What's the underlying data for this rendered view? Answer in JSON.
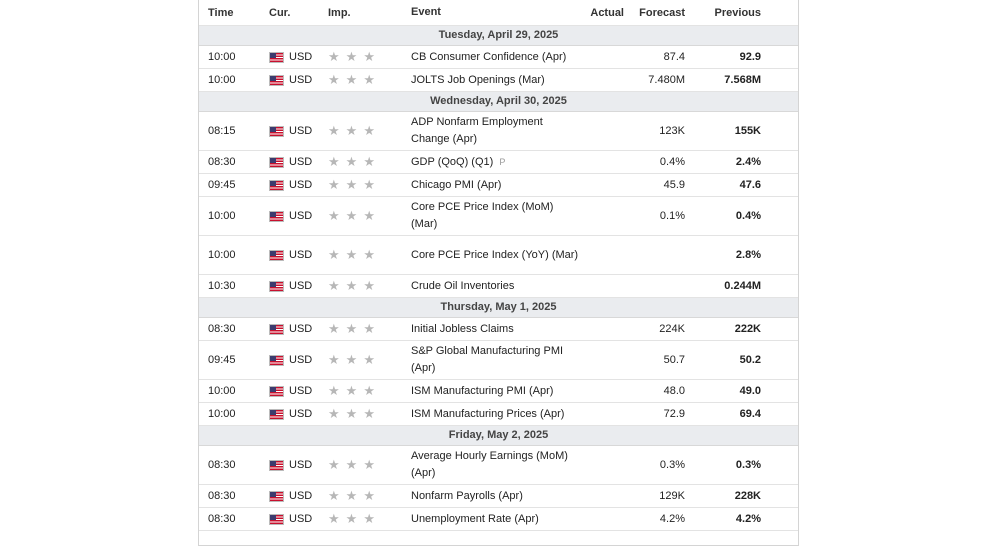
{
  "headers": {
    "time": "Time",
    "cur": "Cur.",
    "imp": "Imp.",
    "event": "Event",
    "actual": "Actual",
    "forecast": "Forecast",
    "previous": "Previous"
  },
  "sections": [
    {
      "date": "Tuesday, April 29, 2025",
      "rows": [
        {
          "time": "10:00",
          "cur": "USD",
          "event": "CB Consumer Confidence (Apr)",
          "actual": "",
          "forecast": "87.4",
          "previous": "92.9"
        },
        {
          "time": "10:00",
          "cur": "USD",
          "event": "JOLTS Job Openings (Mar)",
          "actual": "",
          "forecast": "7.480M",
          "previous": "7.568M"
        }
      ]
    },
    {
      "date": "Wednesday, April 30, 2025",
      "rows": [
        {
          "time": "08:15",
          "cur": "USD",
          "event": "ADP Nonfarm Employment Change (Apr)",
          "actual": "",
          "forecast": "123K",
          "previous": "155K"
        },
        {
          "time": "08:30",
          "cur": "USD",
          "event": "GDP (QoQ) (Q1)",
          "badge": "P",
          "actual": "",
          "forecast": "0.4%",
          "previous": "2.4%"
        },
        {
          "time": "09:45",
          "cur": "USD",
          "event": "Chicago PMI (Apr)",
          "actual": "",
          "forecast": "45.9",
          "previous": "47.6"
        },
        {
          "time": "10:00",
          "cur": "USD",
          "event": "Core PCE Price Index (MoM) (Mar)",
          "actual": "",
          "forecast": "0.1%",
          "previous": "0.4%"
        },
        {
          "time": "10:00",
          "cur": "USD",
          "event": "Core PCE Price Index (YoY) (Mar)",
          "actual": "",
          "forecast": "",
          "previous": "2.8%"
        },
        {
          "time": "10:30",
          "cur": "USD",
          "event": "Crude Oil Inventories",
          "actual": "",
          "forecast": "",
          "previous": "0.244M"
        }
      ]
    },
    {
      "date": "Thursday, May 1, 2025",
      "rows": [
        {
          "time": "08:30",
          "cur": "USD",
          "event": "Initial Jobless Claims",
          "actual": "",
          "forecast": "224K",
          "previous": "222K"
        },
        {
          "time": "09:45",
          "cur": "USD",
          "event": "S&P Global Manufacturing PMI (Apr)",
          "actual": "",
          "forecast": "50.7",
          "previous": "50.2"
        },
        {
          "time": "10:00",
          "cur": "USD",
          "event": "ISM Manufacturing PMI (Apr)",
          "actual": "",
          "forecast": "48.0",
          "previous": "49.0"
        },
        {
          "time": "10:00",
          "cur": "USD",
          "event": "ISM Manufacturing Prices (Apr)",
          "actual": "",
          "forecast": "72.9",
          "previous": "69.4"
        }
      ]
    },
    {
      "date": "Friday, May 2, 2025",
      "rows": [
        {
          "time": "08:30",
          "cur": "USD",
          "event": "Average Hourly Earnings (MoM) (Apr)",
          "actual": "",
          "forecast": "0.3%",
          "previous": "0.3%"
        },
        {
          "time": "08:30",
          "cur": "USD",
          "event": "Nonfarm Payrolls (Apr)",
          "actual": "",
          "forecast": "129K",
          "previous": "228K"
        },
        {
          "time": "08:30",
          "cur": "USD",
          "event": "Unemployment Rate (Apr)",
          "actual": "",
          "forecast": "4.2%",
          "previous": "4.2%"
        }
      ]
    }
  ],
  "importance_icon": "star-icon",
  "flag_icon": "us-flag-icon"
}
